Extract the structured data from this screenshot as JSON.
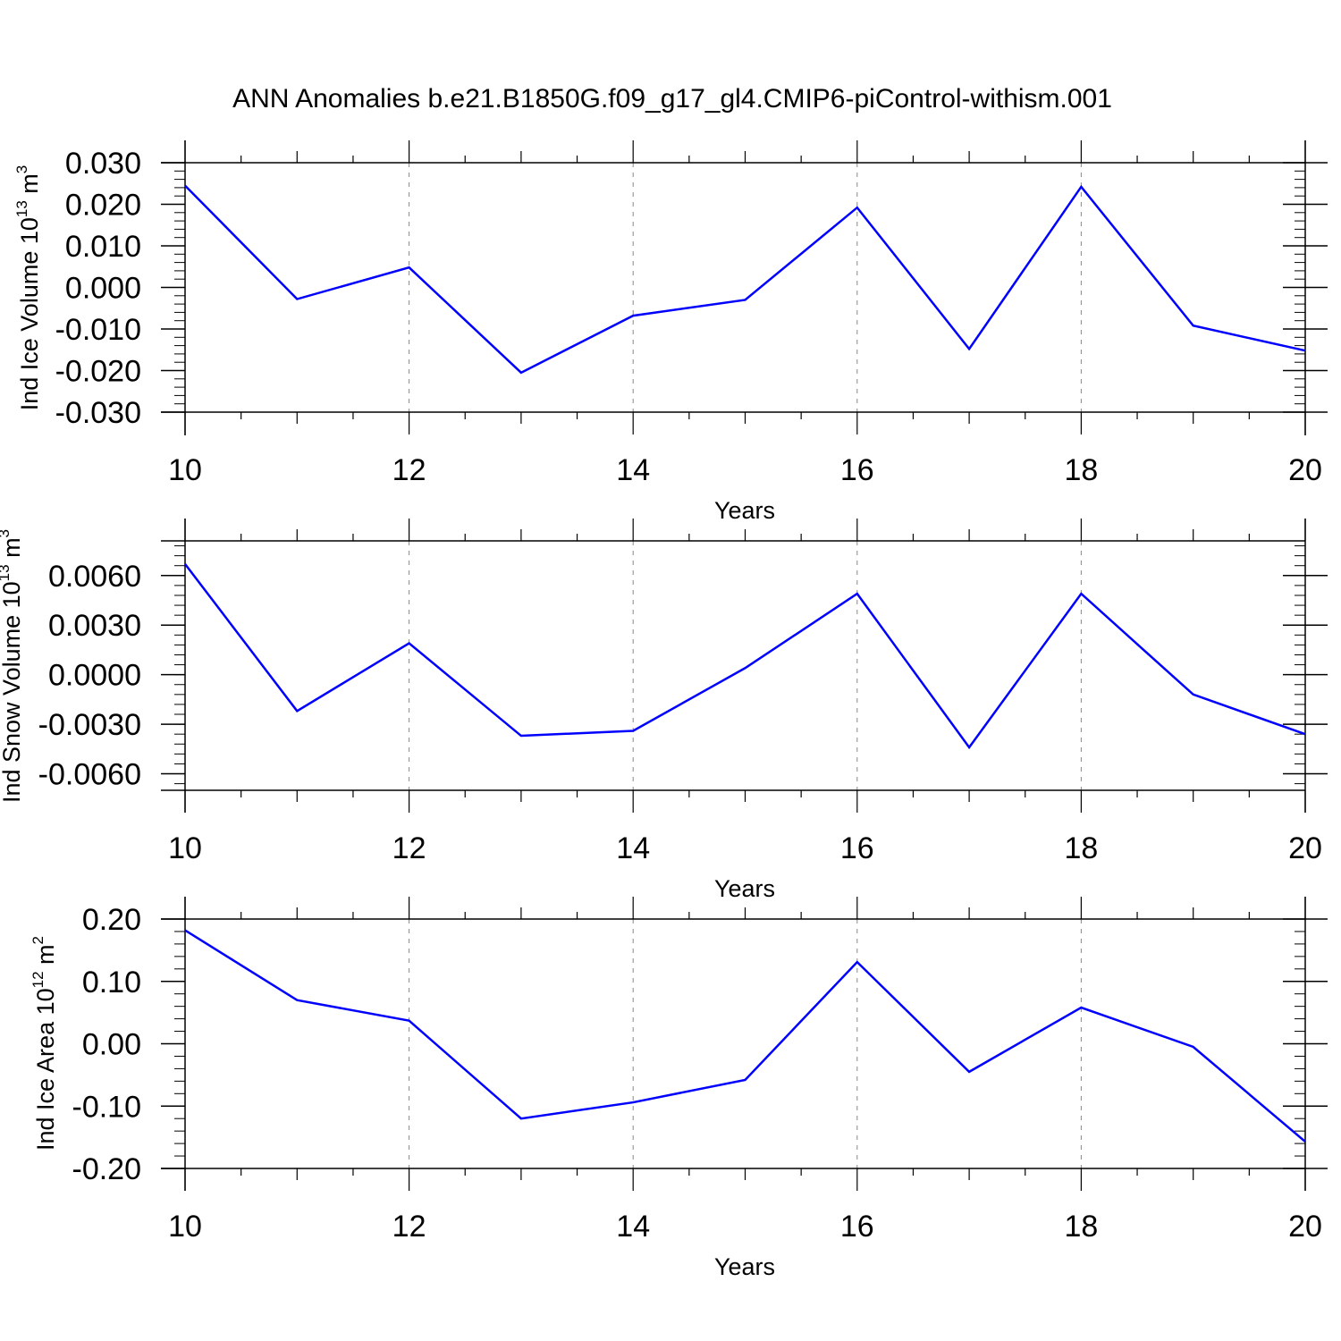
{
  "title": "ANN Anomalies b.e21.B1850G.f09_g17_gl4.CMIP6-piControl-withism.001",
  "colors": {
    "series": "#0000ff",
    "axis": "#000000",
    "grid": "#888888"
  },
  "chart_data": [
    {
      "type": "line",
      "ylabel": {
        "text": "Ind Ice Volume 10",
        "exp": "13",
        "unit": " m",
        "unit_exp": "3"
      },
      "xlabel": "Years",
      "xlim": [
        10,
        20
      ],
      "ylim": [
        -0.03,
        0.03
      ],
      "x_ticks": [
        "10",
        "12",
        "14",
        "16",
        "18",
        "20"
      ],
      "y_ticks": [
        "0.030",
        "0.020",
        "0.010",
        "0.000",
        "-0.010",
        "-0.020",
        "-0.030"
      ],
      "grid": "vertical dashed at major x ticks",
      "x": [
        10,
        11,
        12,
        13,
        14,
        15,
        16,
        17,
        18,
        19,
        20
      ],
      "values": [
        0.0245,
        -0.0028,
        0.0048,
        -0.0205,
        -0.0068,
        -0.003,
        0.0192,
        -0.0148,
        0.0242,
        -0.0092,
        -0.0152
      ]
    },
    {
      "type": "line",
      "ylabel": {
        "text": "Ind Snow Volume 10",
        "exp": "13",
        "unit": " m",
        "unit_exp": "3"
      },
      "xlabel": "Years",
      "xlim": [
        10,
        20
      ],
      "ylim": [
        -0.007,
        0.0081
      ],
      "x_ticks": [
        "10",
        "12",
        "14",
        "16",
        "18",
        "20"
      ],
      "y_ticks": [
        "0.0060",
        "0.0030",
        "0.0000",
        "-0.0030",
        "-0.0060"
      ],
      "grid": "vertical dashed at major x ticks",
      "x": [
        10,
        11,
        12,
        13,
        14,
        15,
        16,
        17,
        18,
        19,
        20
      ],
      "values": [
        0.0067,
        -0.0022,
        0.0019,
        -0.0037,
        -0.0034,
        0.0004,
        0.0049,
        -0.0044,
        0.0049,
        -0.0012,
        -0.0036
      ]
    },
    {
      "type": "line",
      "ylabel": {
        "text": "Ind Ice Area 10",
        "exp": "12",
        "unit": " m",
        "unit_exp": "2"
      },
      "xlabel": "Years",
      "xlim": [
        10,
        20
      ],
      "ylim": [
        -0.2,
        0.2
      ],
      "x_ticks": [
        "10",
        "12",
        "14",
        "16",
        "18",
        "20"
      ],
      "y_ticks": [
        "0.20",
        "0.10",
        "0.00",
        "-0.10",
        "-0.20"
      ],
      "grid": "vertical dashed at major x ticks",
      "x": [
        10,
        11,
        12,
        13,
        14,
        15,
        16,
        17,
        18,
        19,
        20
      ],
      "values": [
        0.182,
        0.07,
        0.037,
        -0.12,
        -0.094,
        -0.058,
        0.131,
        -0.045,
        0.058,
        -0.005,
        -0.157
      ]
    }
  ]
}
